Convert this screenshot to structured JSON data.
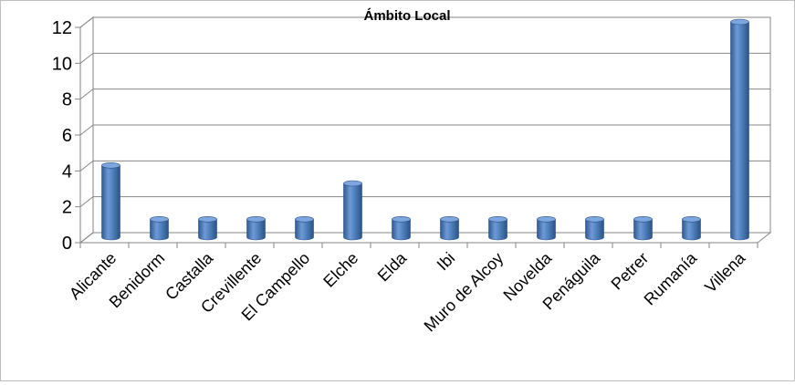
{
  "chart_data": {
    "type": "bar",
    "title": "Ámbito Local",
    "xlabel": "",
    "ylabel": "",
    "categories": [
      "Alicante",
      "Benidorm",
      "Castalla",
      "Crevillente",
      "El Campello",
      "Elche",
      "Elda",
      "Ibi",
      "Muro de Alcoy",
      "Novelda",
      "Penáguila",
      "Petrer",
      "Rumanía",
      "Villena"
    ],
    "values": [
      4,
      1,
      1,
      1,
      1,
      3,
      1,
      1,
      1,
      1,
      1,
      1,
      1,
      12
    ],
    "ylim": [
      0,
      12
    ],
    "yticks": [
      0,
      2,
      4,
      6,
      8,
      10,
      12
    ],
    "grid": true,
    "legend": "none",
    "bar_color": "#4f81bd"
  }
}
